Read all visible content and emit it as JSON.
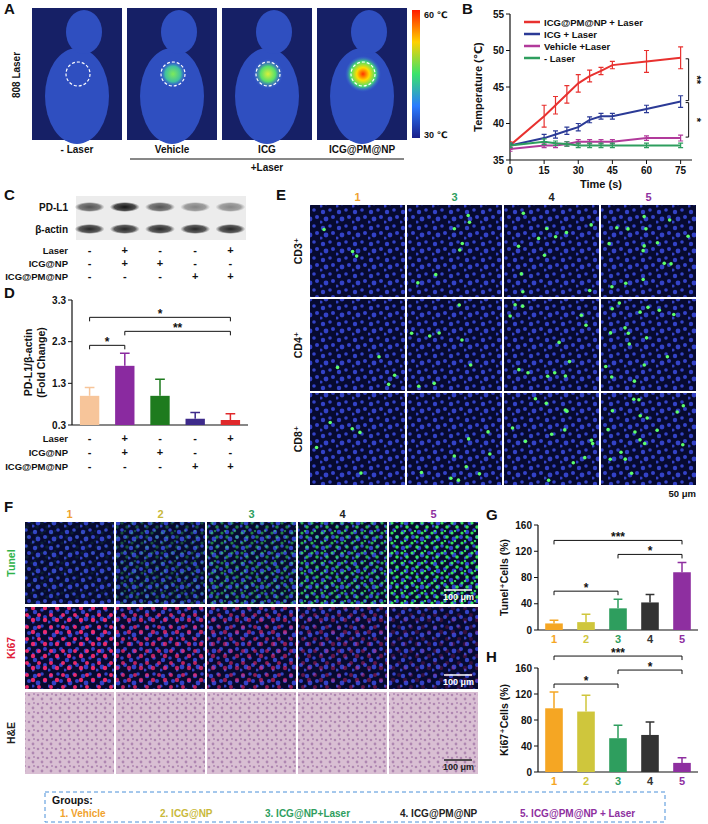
{
  "chart_data": [
    {
      "type": "line",
      "x_label": "Time (s)",
      "y_label": "Temperature (℃)",
      "x": [
        0,
        15,
        20,
        25,
        30,
        35,
        40,
        45,
        60,
        75
      ],
      "xlim": [
        0,
        80
      ],
      "xticks": [
        0,
        15,
        30,
        45,
        60,
        75
      ],
      "ylim": [
        35,
        55
      ],
      "yticks": [
        35,
        40,
        45,
        50,
        55
      ],
      "legend": "upper left",
      "series": [
        {
          "name": "ICG@PM@NP + Laser",
          "color": "#e8312f",
          "values": [
            37,
            41,
            42.5,
            44,
            45.5,
            46.5,
            47.2,
            48,
            48.5,
            49
          ],
          "errors": [
            0.5,
            1.5,
            1.2,
            1.2,
            1.2,
            0.8,
            0.5,
            0.5,
            1.5,
            1.5
          ]
        },
        {
          "name": "ICG + Laser",
          "color": "#2b3a96",
          "values": [
            37,
            38,
            38.5,
            39,
            39.5,
            40.5,
            41,
            41,
            42,
            43
          ],
          "errors": [
            0.3,
            0.5,
            0.5,
            0.5,
            0.5,
            0.4,
            0.4,
            0.4,
            0.5,
            0.8
          ]
        },
        {
          "name": "Vehicle +Laser",
          "color": "#b13a9b",
          "values": [
            36.5,
            37,
            37,
            37.2,
            37.5,
            37.5,
            37.5,
            37.5,
            38,
            38
          ],
          "errors": [
            0.3,
            0.3,
            0.3,
            0.3,
            0.3,
            0.3,
            0.3,
            0.3,
            0.3,
            0.4
          ]
        },
        {
          "name": "- Laser",
          "color": "#2e9e5e",
          "values": [
            37,
            37.5,
            37.3,
            37.2,
            37,
            37,
            37,
            37,
            37,
            37
          ],
          "errors": [
            0.3,
            0.4,
            0.3,
            0.3,
            0.3,
            0.3,
            0.3,
            0.3,
            0.3,
            0.3
          ]
        }
      ],
      "annotations": [
        {
          "text": "**",
          "between": [
            0,
            1
          ]
        },
        {
          "text": "*",
          "between": [
            1,
            2
          ]
        }
      ]
    },
    {
      "type": "bar",
      "y_label": [
        "PD-L1/β-actin",
        "(Fold Change)"
      ],
      "categories": [
        null,
        null,
        null,
        null,
        null
      ],
      "values": [
        1.0,
        1.72,
        1.0,
        0.45,
        0.42
      ],
      "errors": [
        0.2,
        0.3,
        0.4,
        0.15,
        0.15
      ],
      "colors": [
        "#f7c59a",
        "#8a2aa0",
        "#1e7b1e",
        "#3d2a8a",
        "#e0282a"
      ],
      "ylim": [
        0.3,
        3.3
      ],
      "yticks": [
        0.3,
        1.3,
        2.3,
        3.3
      ],
      "annotations": [
        {
          "text": "*",
          "from": 0,
          "to": 1
        },
        {
          "text": "**",
          "from": 1,
          "to": 4
        },
        {
          "text": "*",
          "from": 0,
          "to": 4
        }
      ]
    },
    {
      "type": "bar",
      "y_label": [
        "Tunel⁺Cells (%)"
      ],
      "categories": [
        "1",
        "2",
        "3",
        "4",
        "5"
      ],
      "values": [
        10,
        12,
        33,
        42,
        88
      ],
      "errors": [
        5,
        12,
        14,
        12,
        15
      ],
      "colors": [
        "#f5a623",
        "#cfc63c",
        "#2e9e5e",
        "#333333",
        "#8e2fa0"
      ],
      "ylim": [
        0,
        160
      ],
      "yticks": [
        0,
        40,
        80,
        120,
        160
      ],
      "annotations": [
        {
          "text": "*",
          "from": 0,
          "to": 2
        },
        {
          "text": "***",
          "from": 0,
          "to": 4
        },
        {
          "text": "*",
          "from": 2,
          "to": 4
        }
      ]
    },
    {
      "type": "bar",
      "y_label": [
        "Ki67⁺Cells (%)"
      ],
      "categories": [
        "1",
        "2",
        "3",
        "4",
        "5"
      ],
      "values": [
        98,
        93,
        52,
        57,
        14
      ],
      "errors": [
        25,
        25,
        20,
        20,
        8
      ],
      "colors": [
        "#f5a623",
        "#cfc63c",
        "#2e9e5e",
        "#333333",
        "#8e2fa0"
      ],
      "ylim": [
        0,
        160
      ],
      "yticks": [
        0,
        40,
        80,
        120,
        160
      ],
      "annotations": [
        {
          "text": "*",
          "from": 0,
          "to": 2
        },
        {
          "text": "***",
          "from": 0,
          "to": 4
        },
        {
          "text": "*",
          "from": 2,
          "to": 4
        }
      ]
    }
  ],
  "panel_letters": [
    "A",
    "B",
    "C",
    "D",
    "E",
    "F",
    "G",
    "H"
  ],
  "panel_A": {
    "side_label": "808 Laser",
    "conditions": [
      "- Laser",
      "Vehicle",
      "ICG",
      "ICG@PM@NP"
    ],
    "group_label": "+Laser",
    "colorbar_max": "60 ℃",
    "colorbar_min": "30 ℃"
  },
  "panel_C": {
    "bands": [
      "PD-L1",
      "β-actin"
    ],
    "rows": [
      {
        "label": "Laser",
        "signs": [
          "-",
          "+",
          "-",
          "-",
          "+"
        ]
      },
      {
        "label": "ICG@NP",
        "signs": [
          "-",
          "+",
          "+",
          "-",
          "-"
        ]
      },
      {
        "label": "ICG@PM@NP",
        "signs": [
          "-",
          "-",
          "-",
          "+",
          "+"
        ]
      }
    ]
  },
  "panel_D_table": {
    "rows": [
      {
        "label": "Laser",
        "signs": [
          "-",
          "+",
          "-",
          "-",
          "+"
        ]
      },
      {
        "label": "ICG@NP",
        "signs": [
          "-",
          "+",
          "+",
          "-",
          "-"
        ]
      },
      {
        "label": "ICG@PM@NP",
        "signs": [
          "-",
          "-",
          "-",
          "+",
          "+"
        ]
      }
    ]
  },
  "panel_E": {
    "columns": [
      {
        "label": "1",
        "color": "#f0a22e"
      },
      {
        "label": "3",
        "color": "#2e9e5e"
      },
      {
        "label": "4",
        "color": "#222222"
      },
      {
        "label": "5",
        "color": "#8e2fa0"
      }
    ],
    "rows": [
      "CD3⁺",
      "CD4⁺",
      "CD8⁺"
    ],
    "scale_bar": "50 μm"
  },
  "panel_F": {
    "columns": [
      {
        "label": "1",
        "color": "#f0a22e"
      },
      {
        "label": "2",
        "color": "#c9b93a"
      },
      {
        "label": "3",
        "color": "#2e9e5e"
      },
      {
        "label": "4",
        "color": "#222222"
      },
      {
        "label": "5",
        "color": "#8e2fa0"
      }
    ],
    "rows": [
      {
        "label": "Tunel",
        "color": "#2fb34a"
      },
      {
        "label": "Ki67",
        "color": "#e0203a"
      },
      {
        "label": "H&E",
        "color": "#222222"
      }
    ],
    "scale_bar": "100 μm"
  },
  "groups": {
    "title": "Groups:",
    "items": [
      {
        "label": "1. Vehicle",
        "color": "#f0a22e"
      },
      {
        "label": "2. ICG@NP",
        "color": "#c9b93a"
      },
      {
        "label": "3. ICG@NP+Laser",
        "color": "#2e9e5e"
      },
      {
        "label": "4. ICG@PM@NP",
        "color": "#222222"
      },
      {
        "label": "5. ICG@PM@NP + Laser",
        "color": "#8e2fa0"
      }
    ]
  }
}
